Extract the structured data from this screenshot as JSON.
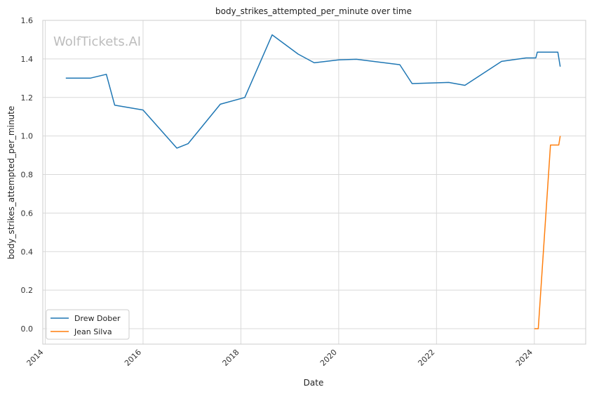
{
  "chart_data": {
    "type": "line",
    "title": "body_strikes_attempted_per_minute over time",
    "xlabel": "Date",
    "ylabel": "body_strikes_attempted_per_minute",
    "watermark": "WolfTickets.AI",
    "xlim": [
      2013.95,
      2025.05
    ],
    "ylim": [
      -0.08,
      1.6
    ],
    "x_ticks": [
      2014,
      2016,
      2018,
      2020,
      2022,
      2024
    ],
    "x_tick_labels": [
      "2014",
      "2016",
      "2018",
      "2020",
      "2022",
      "2024"
    ],
    "y_ticks": [
      0.0,
      0.2,
      0.4,
      0.6,
      0.8,
      1.0,
      1.2,
      1.4,
      1.6
    ],
    "y_tick_labels": [
      "0.0",
      "0.2",
      "0.4",
      "0.6",
      "0.8",
      "1.0",
      "1.2",
      "1.4",
      "1.6"
    ],
    "grid": true,
    "legend_position": "lower-left",
    "series": [
      {
        "name": "Drew Dober",
        "color": "#1f77b4",
        "points": [
          [
            2014.42,
            1.3
          ],
          [
            2014.92,
            1.3
          ],
          [
            2015.25,
            1.32
          ],
          [
            2015.42,
            1.16
          ],
          [
            2016.0,
            1.135
          ],
          [
            2016.69,
            0.937
          ],
          [
            2016.92,
            0.96
          ],
          [
            2017.58,
            1.165
          ],
          [
            2018.08,
            1.2
          ],
          [
            2018.64,
            1.525
          ],
          [
            2019.17,
            1.425
          ],
          [
            2019.5,
            1.38
          ],
          [
            2020.0,
            1.395
          ],
          [
            2020.36,
            1.398
          ],
          [
            2021.25,
            1.37
          ],
          [
            2021.5,
            1.272
          ],
          [
            2022.25,
            1.278
          ],
          [
            2022.58,
            1.263
          ],
          [
            2023.33,
            1.387
          ],
          [
            2023.83,
            1.405
          ],
          [
            2024.03,
            1.405
          ],
          [
            2024.06,
            1.435
          ],
          [
            2024.48,
            1.435
          ],
          [
            2024.53,
            1.36
          ]
        ]
      },
      {
        "name": "Jean Silva",
        "color": "#ff7f0e",
        "points": [
          [
            2024.0,
            0.0
          ],
          [
            2024.08,
            0.0
          ],
          [
            2024.33,
            0.953
          ],
          [
            2024.5,
            0.953
          ],
          [
            2024.53,
            1.0
          ]
        ]
      }
    ]
  }
}
